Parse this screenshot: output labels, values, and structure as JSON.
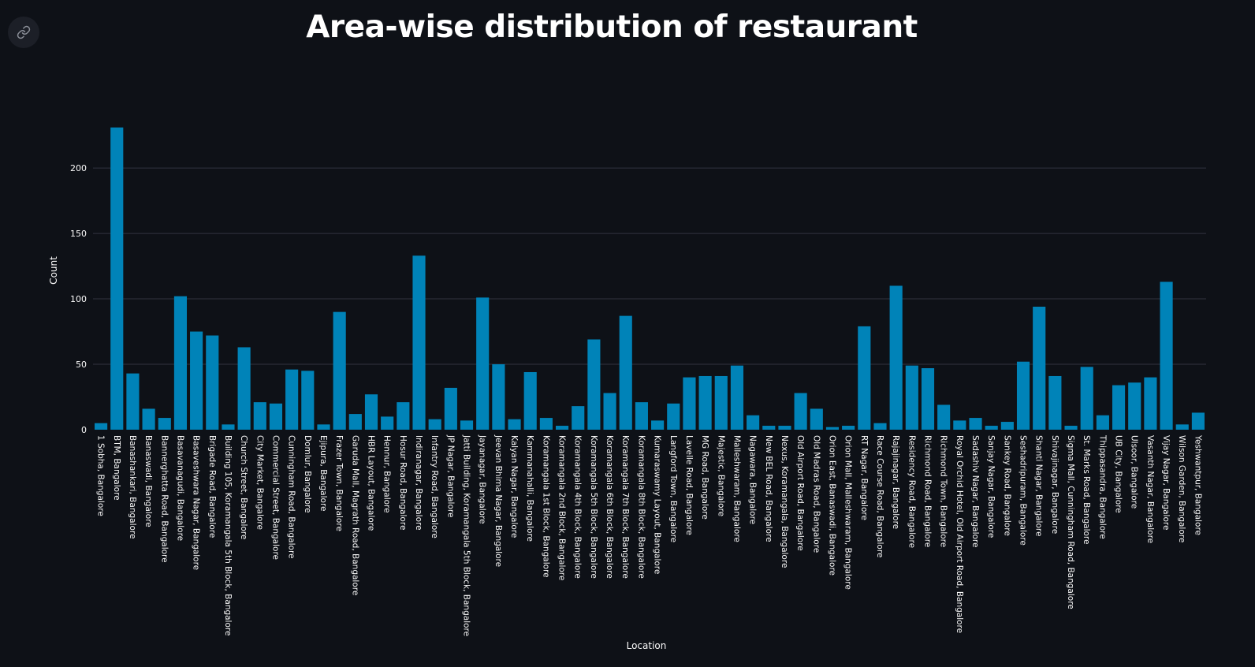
{
  "header": {
    "link_icon": "link-icon"
  },
  "chart_data": {
    "type": "bar",
    "title": "Area-wise distribution of restaurant",
    "xlabel": "Location",
    "ylabel": "Count",
    "ylim": [
      0,
      232
    ],
    "yticks": [
      0,
      50,
      100,
      150,
      200
    ],
    "grid": true,
    "bar_color": "#0083b8",
    "grid_color": "#31333f",
    "background": "#0e1117",
    "categories": [
      "1 Sobha, Bangalore",
      "BTM, Bangalore",
      "Banashankari, Bangalore",
      "Banaswadi, Bangalore",
      "Bannerghatta Road, Bangalore",
      "Basavanagudi, Bangalore",
      "Basaveshwara Nagar, Bangalore",
      "Brigade Road, Bangalore",
      "Building 105, Koramangala 5th Block, Bangalore",
      "Church Street, Bangalore",
      "City Market, Bangalore",
      "Commercial Street, Bangalore",
      "Cunningham Road, Bangalore",
      "Domlur, Bangalore",
      "Ejipura, Bangalore",
      "Frazer Town, Bangalore",
      "Garuda Mall, Magrath Road, Bangalore",
      "HBR Layout, Bangalore",
      "Hennur, Bangalore",
      "Hosur Road, Bangalore",
      "Indiranagar, Bangalore",
      "Infantry Road, Bangalore",
      "JP Nagar, Bangalore",
      "Jatti Building, Koramangala 5th Block, Bangalore",
      "Jayanagar, Bangalore",
      "Jeevan Bhima Nagar, Bangalore",
      "Kalyan Nagar, Bangalore",
      "Kammanahalli, Bangalore",
      "Koramangala 1st Block, Bangalore",
      "Koramangala 2nd Block, Bangalore",
      "Koramangala 4th Block, Bangalore",
      "Koramangala 5th Block, Bangalore",
      "Koramangala 6th Block, Bangalore",
      "Koramangala 7th Block, Bangalore",
      "Koramangala 8th Block, Bangalore",
      "Kumaraswamy Layout, Bangalore",
      "Langford Town, Bangalore",
      "Lavelle Road, Bangalore",
      "MG Road, Bangalore",
      "Majestic, Bangalore",
      "Malleshwaram, Bangalore",
      "Nagawara, Bangalore",
      "New BEL Road, Bangalore",
      "Nexus, Koramangala, Bangalore",
      "Old Airport Road, Bangalore",
      "Old Madras Road, Bangalore",
      "Orion East, Banaswadi, Bangalore",
      "Orion Mall, Malleshwaram, Bangalore",
      "RT Nagar, Bangalore",
      "Race Course Road, Bangalore",
      "Rajajinagar, Bangalore",
      "Residency Road, Bangalore",
      "Richmond Road, Bangalore",
      "Richmond Town, Bangalore",
      "Royal Orchid Hotel,  Old Airport Road, Bangalore",
      "Sadashiv Nagar, Bangalore",
      "Sanjay Nagar, Bangalore",
      "Sankey Road, Bangalore",
      "Seshadripuram, Bangalore",
      "Shanti Nagar, Bangalore",
      "Shivajinagar, Bangalore",
      "Sigma Mall, Cunningham Road, Bangalore",
      "St. Marks Road, Bangalore",
      "Thippasandra, Bangalore",
      "UB City, Bangalore",
      "Ulsoor, Bangalore",
      "Vasanth Nagar, Bangalore",
      "Vijay Nagar, Bangalore",
      "Wilson Garden, Bangalore",
      "Yeshwantpur, Bangalore"
    ],
    "values": [
      5,
      231,
      43,
      16,
      9,
      102,
      75,
      72,
      4,
      63,
      21,
      20,
      46,
      45,
      4,
      90,
      12,
      27,
      10,
      21,
      133,
      8,
      32,
      7,
      101,
      50,
      8,
      44,
      9,
      3,
      18,
      69,
      28,
      87,
      21,
      7,
      20,
      40,
      41,
      41,
      49,
      11,
      3,
      3,
      28,
      16,
      2,
      3,
      79,
      5,
      110,
      49,
      47,
      19,
      7,
      9,
      3,
      6,
      52,
      94,
      41,
      3,
      48,
      11,
      34,
      36,
      40,
      113,
      4,
      13
    ]
  }
}
